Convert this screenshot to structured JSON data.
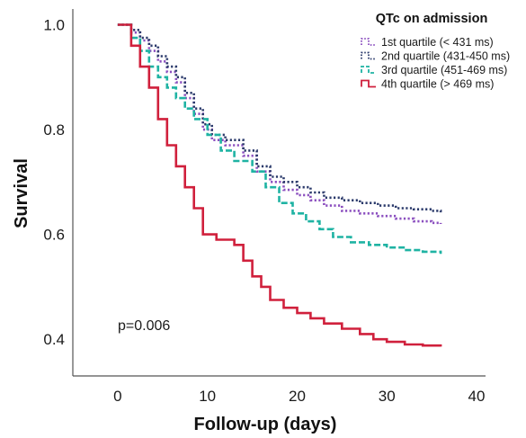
{
  "chart_data": {
    "type": "line",
    "step": true,
    "xlabel": "Follow-up (days)",
    "ylabel": "Survival",
    "xlim": [
      -5,
      41
    ],
    "ylim": [
      0.33,
      1.03
    ],
    "xticks": [
      0,
      10,
      20,
      30,
      40
    ],
    "yticks": [
      0.4,
      0.6,
      0.8,
      1.0
    ],
    "ytick_labels": [
      "0.4",
      "0.6",
      "0.8",
      "1.0"
    ],
    "grid": false,
    "legend": {
      "title": "QTc on admission",
      "position": "top-right"
    },
    "annotation": "p=0.006",
    "series": [
      {
        "name": "1st quartile (< 431 ms)",
        "color": "#8b4fbf",
        "style": "dotted",
        "x": [
          0,
          1.5,
          2.5,
          3.5,
          4.5,
          5.5,
          6.5,
          7.5,
          8.5,
          9.5,
          10.5,
          12,
          14,
          15.5,
          17,
          18.5,
          20,
          21.5,
          23,
          25,
          27,
          29,
          31,
          33,
          35,
          36
        ],
        "y": [
          1.0,
          0.985,
          0.97,
          0.95,
          0.93,
          0.91,
          0.89,
          0.86,
          0.83,
          0.8,
          0.78,
          0.77,
          0.75,
          0.72,
          0.7,
          0.685,
          0.675,
          0.665,
          0.655,
          0.645,
          0.64,
          0.635,
          0.63,
          0.625,
          0.622,
          0.62
        ]
      },
      {
        "name": "2nd quartile (431-450 ms)",
        "color": "#2b3a6b",
        "style": "dotted",
        "x": [
          0,
          1.5,
          2.5,
          3.5,
          4.5,
          5.5,
          6.5,
          7.5,
          8.5,
          9.5,
          10.5,
          12,
          14,
          15.5,
          17,
          18.5,
          20,
          21.5,
          23,
          25,
          27,
          29,
          31,
          33,
          35,
          36
        ],
        "y": [
          1.0,
          0.99,
          0.975,
          0.96,
          0.94,
          0.92,
          0.9,
          0.87,
          0.84,
          0.81,
          0.79,
          0.78,
          0.76,
          0.73,
          0.71,
          0.7,
          0.69,
          0.68,
          0.67,
          0.665,
          0.66,
          0.655,
          0.65,
          0.648,
          0.645,
          0.642
        ]
      },
      {
        "name": "3rd quartile (451-469 ms)",
        "color": "#1fb3a3",
        "style": "dashed",
        "x": [
          0,
          1.5,
          2.5,
          3.5,
          4.5,
          5.5,
          6.5,
          7.5,
          8.5,
          10,
          11.5,
          13,
          15,
          16.5,
          18,
          19.5,
          21,
          22.5,
          24,
          26,
          28,
          30,
          32,
          34,
          36
        ],
        "y": [
          1.0,
          0.975,
          0.95,
          0.92,
          0.9,
          0.88,
          0.86,
          0.84,
          0.82,
          0.79,
          0.76,
          0.74,
          0.72,
          0.69,
          0.66,
          0.64,
          0.625,
          0.61,
          0.595,
          0.585,
          0.58,
          0.575,
          0.57,
          0.567,
          0.563
        ]
      },
      {
        "name": "4th quartile (> 469 ms)",
        "color": "#d0203c",
        "style": "solid",
        "x": [
          0,
          1.5,
          2.5,
          3.5,
          4.5,
          5.5,
          6.5,
          7.5,
          8.5,
          9.5,
          11,
          13,
          14,
          15,
          16,
          17,
          18.5,
          20,
          21.5,
          23,
          25,
          27,
          28.5,
          30,
          32,
          34,
          36
        ],
        "y": [
          1.0,
          0.96,
          0.92,
          0.88,
          0.82,
          0.77,
          0.73,
          0.69,
          0.65,
          0.6,
          0.59,
          0.58,
          0.55,
          0.52,
          0.5,
          0.475,
          0.46,
          0.45,
          0.44,
          0.43,
          0.42,
          0.41,
          0.4,
          0.395,
          0.39,
          0.388,
          0.386
        ]
      }
    ]
  }
}
